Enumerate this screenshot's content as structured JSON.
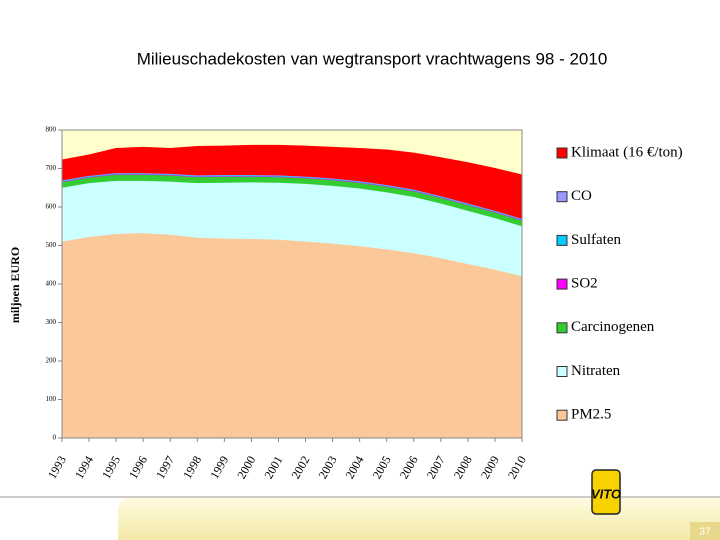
{
  "chart_data": {
    "type": "stacked-area",
    "title": "Milieuschadekosten van wegtransport vrachtwagens  98 - 2010",
    "y_label": "miljoen EURO",
    "categories": [
      "1993",
      "1994",
      "1995",
      "1996",
      "1997",
      "1998",
      "1999",
      "2000",
      "2001",
      "2002",
      "2003",
      "2004",
      "2005",
      "2006",
      "2007",
      "2008",
      "2009",
      "2010"
    ],
    "series": [
      {
        "name": "PM2.5",
        "color": "#fbc89a",
        "values": [
          510,
          522,
          530,
          532,
          528,
          520,
          518,
          517,
          515,
          510,
          505,
          498,
          490,
          480,
          467,
          452,
          437,
          420
        ]
      },
      {
        "name": "Nitraten",
        "color": "#ccffff",
        "values": [
          140,
          140,
          138,
          136,
          138,
          142,
          145,
          147,
          148,
          150,
          150,
          150,
          148,
          146,
          142,
          138,
          134,
          130
        ]
      },
      {
        "name": "Carcinogenen",
        "color": "#33cc33",
        "values": [
          15,
          15,
          16,
          16,
          16,
          16,
          16,
          15,
          15,
          15,
          15,
          15,
          15,
          15,
          15,
          15,
          15,
          15
        ]
      },
      {
        "name": "SO2",
        "color": "#ff00ff",
        "values": [
          1,
          1,
          1,
          1,
          1,
          1,
          1,
          1,
          1,
          1,
          1,
          1,
          1,
          1,
          1,
          1,
          1,
          1
        ]
      },
      {
        "name": "Sulfaten",
        "color": "#00ccff",
        "values": [
          2,
          2,
          2,
          2,
          2,
          2,
          2,
          2,
          2,
          2,
          2,
          2,
          2,
          2,
          2,
          2,
          2,
          2
        ]
      },
      {
        "name": "CO",
        "color": "#9999ff",
        "values": [
          1,
          1,
          1,
          1,
          1,
          1,
          1,
          1,
          1,
          1,
          1,
          1,
          1,
          1,
          1,
          1,
          1,
          1
        ]
      },
      {
        "name": "Klimaat (16 €/ton)",
        "color": "#ff0000",
        "values": [
          53,
          54,
          64,
          67,
          66,
          75,
          75,
          77,
          78,
          79,
          81,
          85,
          91,
          95,
          100,
          106,
          110,
          114
        ]
      }
    ],
    "ylim": [
      0,
      800
    ],
    "yticks": [
      0,
      100,
      200,
      300,
      400,
      500,
      600,
      700,
      800
    ],
    "background": "#ffffcc"
  },
  "slide": {
    "logo": "VITO",
    "page_number": "37"
  }
}
